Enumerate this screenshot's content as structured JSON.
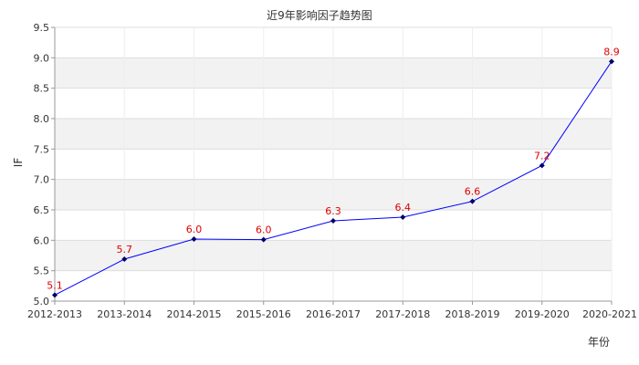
{
  "chart_data": {
    "type": "line",
    "title": "近9年影响因子趋势图",
    "xlabel": "年份",
    "ylabel": "IF",
    "categories": [
      "2012-2013",
      "2013-2014",
      "2014-2015",
      "2015-2016",
      "2016-2017",
      "2017-2018",
      "2018-2019",
      "2019-2020",
      "2020-2021"
    ],
    "series": [
      {
        "values": [
          5.1,
          5.69,
          6.02,
          6.01,
          6.32,
          6.38,
          6.64,
          7.23,
          8.94
        ],
        "labels": [
          "5.1",
          "5.7",
          "6.0",
          "6.0",
          "6.3",
          "6.4",
          "6.6",
          "7.2",
          "8.9"
        ]
      }
    ],
    "ylim": [
      5.0,
      9.5
    ],
    "yticks": [
      "5.0",
      "5.5",
      "6.0",
      "6.5",
      "7.0",
      "7.5",
      "8.0",
      "8.5",
      "9.0",
      "9.5"
    ],
    "grid": true,
    "legend": "none",
    "colors": {
      "line": "#0000ff",
      "marker": "#000066",
      "data_label": "#e00000",
      "band": "#f2f2f2",
      "grid": "#dddddd"
    }
  }
}
